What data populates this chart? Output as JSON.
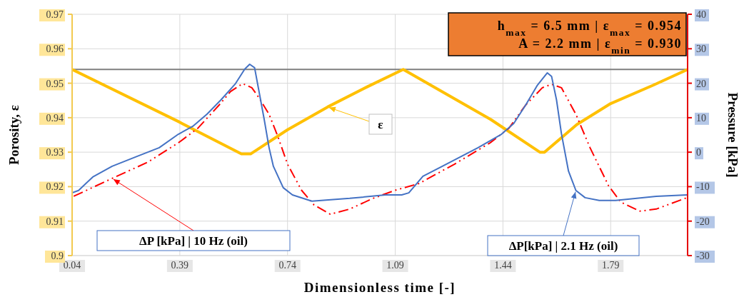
{
  "chart_data": {
    "type": "line",
    "xlabel": "Dimensionless time [-]",
    "ylabel": "Porosity, ε",
    "y2label": "Pressure [kPa]",
    "xlim": [
      0.04,
      2.04
    ],
    "xticks": [
      0.04,
      0.39,
      0.74,
      1.09,
      1.44,
      1.79
    ],
    "ylim": [
      0.9,
      0.97
    ],
    "yticks": [
      0.9,
      0.91,
      0.92,
      0.93,
      0.94,
      0.95,
      0.96,
      0.97
    ],
    "y2lim": [
      -30,
      40
    ],
    "y2ticks": [
      -30,
      -20,
      -10,
      0,
      10,
      20,
      30,
      40
    ],
    "grid": true,
    "marker": "none",
    "annotations": [
      "h$_{max}$ = 6.5 mm | ε$_{max}$ = 0.954",
      "A = 2.2 mm | ε$_{min}$ = 0.930"
    ],
    "ref_lines": [
      {
        "axis": "y",
        "value": 0.954,
        "color": "#7f7f7f"
      }
    ],
    "series": [
      {
        "name": "ε",
        "color": "#ffc000",
        "line_style": "solid",
        "x": [
          0.04,
          0.385,
          0.59,
          0.62,
          0.74,
          0.87,
          1.0,
          1.116,
          1.4,
          1.56,
          1.575,
          1.68,
          1.79,
          1.93,
          2.04
        ],
        "values": [
          0.954,
          0.9389,
          0.9295,
          0.9295,
          0.9365,
          0.9431,
          0.949,
          0.954,
          0.9395,
          0.93,
          0.93,
          0.938,
          0.9441,
          0.9495,
          0.954
        ]
      },
      {
        "name": "ΔP [kPa] | 10 Hz (oil)",
        "color": "#ff0000",
        "line_style": "dashed",
        "axis": "y2",
        "x": [
          0.045,
          0.17,
          0.286,
          0.385,
          0.448,
          0.518,
          0.555,
          0.594,
          0.624,
          0.647,
          0.68,
          0.71,
          0.74,
          0.786,
          0.826,
          0.879,
          0.942,
          1.018,
          1.088,
          1.167,
          1.282,
          1.398,
          1.459,
          1.514,
          1.568,
          1.598,
          1.63,
          1.677,
          1.723,
          1.783,
          1.823,
          1.885,
          1.938,
          2.038
        ],
        "values": [
          -12.8,
          -7.6,
          -2.9,
          2.7,
          6.9,
          13.7,
          17.6,
          19.9,
          18.7,
          15.8,
          11.0,
          4.2,
          -3.5,
          -11.1,
          -15.3,
          -18.0,
          -16.5,
          -13.4,
          -11.1,
          -9.1,
          -3.5,
          2.7,
          6.9,
          13.7,
          18.7,
          19.7,
          18.7,
          11.0,
          1.3,
          -9.7,
          -14.5,
          -17.1,
          -16.5,
          -13.2
        ]
      },
      {
        "name": "ΔP[kPa] | 2.1 Hz (oil)",
        "color": "#4472c4",
        "line_style": "solid",
        "axis": "y2",
        "x": [
          0.04,
          0.061,
          0.107,
          0.17,
          0.246,
          0.323,
          0.385,
          0.432,
          0.478,
          0.524,
          0.571,
          0.601,
          0.617,
          0.633,
          0.647,
          0.664,
          0.68,
          0.694,
          0.726,
          0.756,
          0.819,
          0.942,
          1.058,
          1.111,
          1.134,
          1.18,
          1.243,
          1.359,
          1.435,
          1.475,
          1.514,
          1.551,
          1.584,
          1.598,
          1.614,
          1.63,
          1.653,
          1.677,
          1.707,
          1.753,
          1.806,
          1.938,
          2.038
        ],
        "values": [
          -11.8,
          -11.1,
          -7.2,
          -4.1,
          -1.4,
          1.3,
          5.2,
          7.5,
          11.0,
          15.2,
          19.9,
          24.1,
          25.5,
          24.5,
          17.8,
          9.6,
          1.3,
          -4.1,
          -10.3,
          -12.4,
          -14.2,
          -13.4,
          -12.4,
          -12.4,
          -11.8,
          -7.0,
          -4.1,
          1.3,
          5.2,
          8.3,
          13.7,
          19.3,
          23.0,
          22.0,
          15.2,
          5.4,
          -5.5,
          -11.1,
          -13.2,
          -14.0,
          -14.0,
          -12.8,
          -12.4
        ]
      }
    ]
  }
}
